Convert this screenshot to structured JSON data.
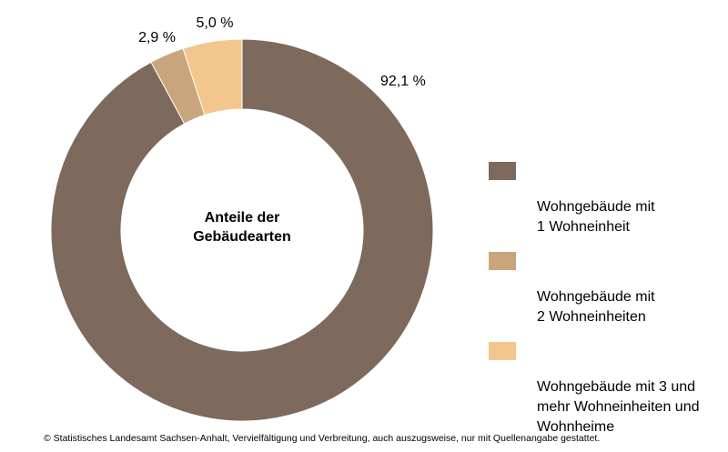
{
  "chart_data": {
    "type": "pie",
    "variant": "donut",
    "center_title": [
      "Anteile der",
      "Gebäudearten"
    ],
    "slices": [
      {
        "name": "Wohngebäude mit 1 Wohneinheit",
        "value": 92.1,
        "label": "92,1 %",
        "color": "#7d6a5c"
      },
      {
        "name": "Wohngebäude mit 2 Wohneinheiten",
        "value": 2.9,
        "label": "2,9 %",
        "color": "#c8a57b"
      },
      {
        "name": "Wohngebäude mit 3 und mehr Wohneinheiten und Wohnheime",
        "value": 5.0,
        "label": "5,0 %",
        "color": "#f3c68e"
      }
    ],
    "start": "12 o'clock",
    "direction": "clockwise",
    "legend_position": "right"
  },
  "legend": {
    "items": [
      {
        "label": "Wohngebäude mit\n1 Wohneinheit",
        "color": "#7d6a5c"
      },
      {
        "label": "Wohngebäude mit\n2 Wohneinheiten",
        "color": "#c8a57b"
      },
      {
        "label": "Wohngebäude mit 3 und\nmehr Wohneinheiten und\nWohnheime",
        "color": "#f3c68e"
      }
    ]
  },
  "footer": {
    "copyright": "© Statistisches Landesamt Sachsen-Anhalt, Vervielfältigung und Verbreitung, auch auszugsweise, nur mit Quellenangabe gestattet."
  }
}
